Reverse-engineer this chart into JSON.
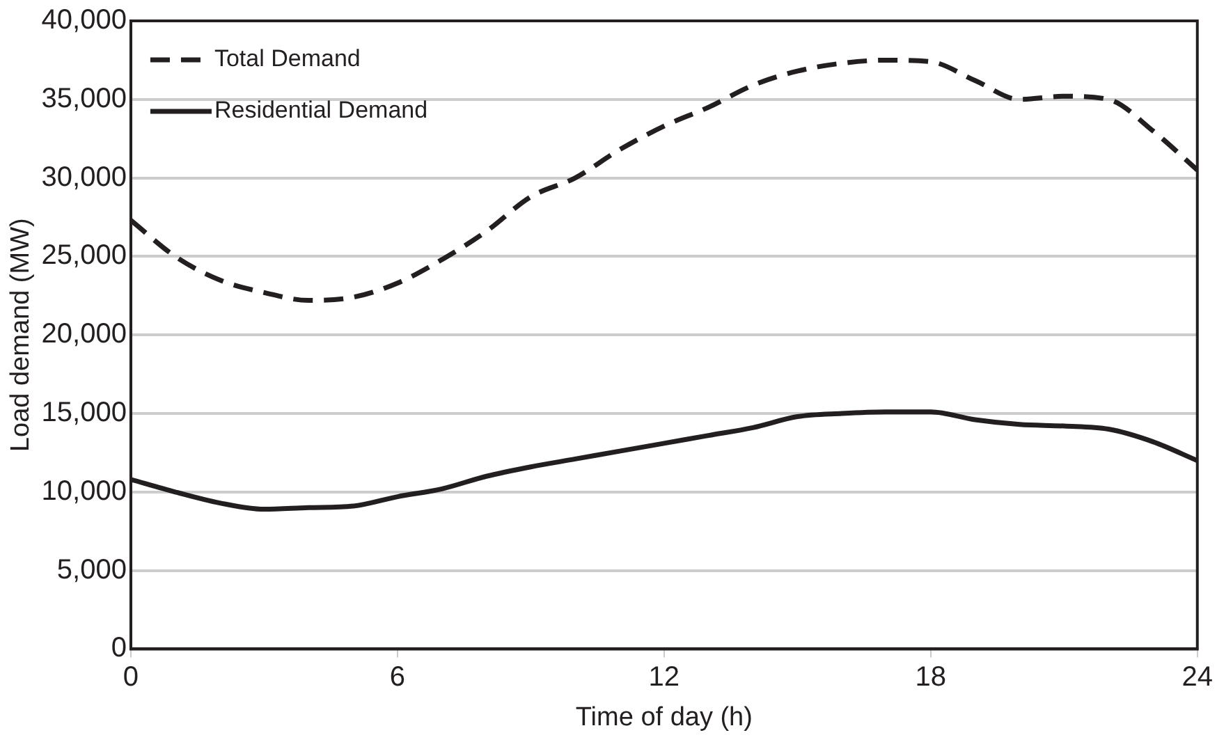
{
  "chart_data": {
    "type": "line",
    "xlabel": "Time of day (h)",
    "ylabel": "Load demand (MW)",
    "x": [
      0,
      1,
      2,
      3,
      4,
      5,
      6,
      7,
      8,
      9,
      10,
      11,
      12,
      13,
      14,
      15,
      16,
      17,
      18,
      19,
      20,
      21,
      22,
      23,
      24
    ],
    "series": [
      {
        "name": "Total Demand",
        "color": "#231f20",
        "line_style": "dashed",
        "values": [
          27300,
          25000,
          23500,
          22700,
          22200,
          22400,
          23300,
          24800,
          26600,
          28800,
          30000,
          31800,
          33300,
          34500,
          35900,
          36800,
          37300,
          37500,
          37400,
          36200,
          35000,
          35200,
          35000,
          33000,
          30500
        ]
      },
      {
        "name": "Residential Demand",
        "color": "#231f20",
        "line_style": "solid",
        "values": [
          10800,
          10000,
          9300,
          8900,
          9000,
          9100,
          9700,
          10200,
          11000,
          11600,
          12100,
          12600,
          13100,
          13600,
          14100,
          14800,
          15000,
          15100,
          15100,
          14600,
          14300,
          14200,
          14000,
          13200,
          12000
        ]
      }
    ],
    "xlim": [
      0,
      24
    ],
    "xticks": [
      0,
      6,
      12,
      18,
      24
    ],
    "ylim": [
      0,
      40000
    ],
    "yticks": [
      0,
      {
        "value": 5000,
        "label": "5,000"
      },
      {
        "value": 10000,
        "label": "10,000"
      },
      {
        "value": 15000,
        "label": "15,000"
      },
      {
        "value": 20000,
        "label": "20,000"
      },
      {
        "value": 25000,
        "label": "25,000"
      },
      {
        "value": 30000,
        "label": "30,000"
      },
      {
        "value": 35000,
        "label": "35,000"
      },
      {
        "value": 40000,
        "label": "40,000"
      }
    ],
    "grid": "y",
    "legend": "top left",
    "marker": "none"
  }
}
